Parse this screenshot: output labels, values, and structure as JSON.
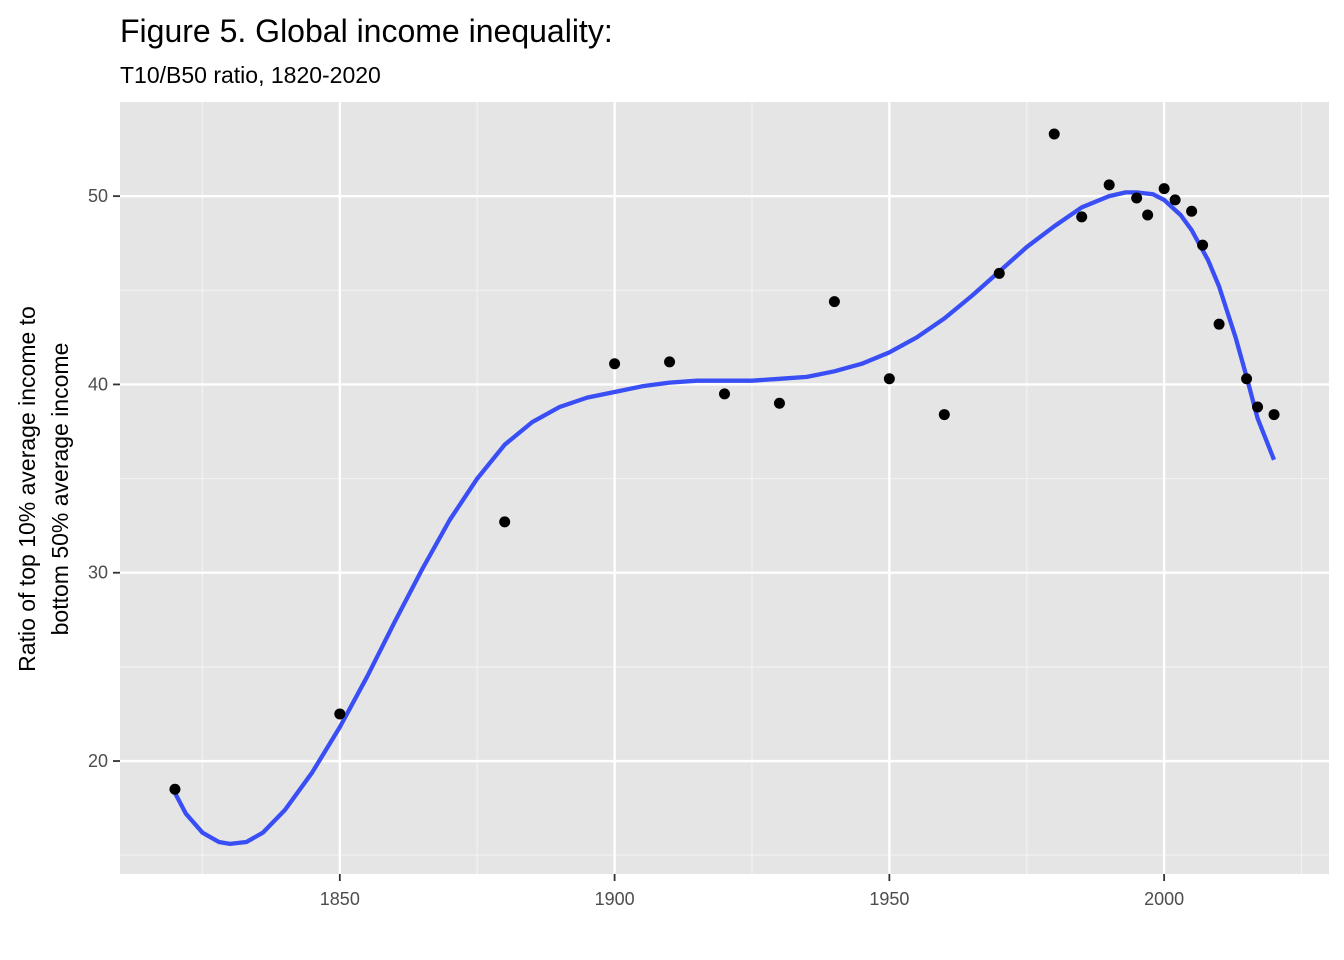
{
  "chart_data": {
    "type": "scatter",
    "title": "Figure 5. Global income inequality:",
    "subtitle": "T10/B50 ratio, 1820-2020",
    "xlabel": "",
    "ylabel_lines": [
      "Ratio of top 10% average income to",
      "bottom 50% average income"
    ],
    "xlim": [
      1810,
      2030
    ],
    "ylim": [
      14,
      55
    ],
    "x_ticks": [
      1850,
      1900,
      1950,
      2000
    ],
    "x_minor_ticks": [
      1825,
      1875,
      1925,
      1975,
      2025
    ],
    "y_ticks": [
      20,
      30,
      40,
      50
    ],
    "y_minor_ticks": [
      15,
      25,
      35,
      45
    ],
    "grid": true,
    "points": {
      "name": "T10/B50 ratio",
      "color": "#000000",
      "x": [
        1820,
        1850,
        1880,
        1900,
        1910,
        1920,
        1930,
        1940,
        1950,
        1960,
        1970,
        1980,
        1985,
        1990,
        1995,
        1997,
        2000,
        2002,
        2005,
        2007,
        2010,
        2015,
        2017,
        2020
      ],
      "y": [
        18.5,
        22.5,
        32.7,
        41.1,
        41.2,
        39.5,
        39.0,
        44.4,
        40.3,
        38.4,
        45.9,
        53.3,
        48.9,
        50.6,
        49.9,
        49.0,
        50.4,
        49.8,
        49.2,
        47.4,
        43.2,
        40.3,
        38.8,
        38.4
      ]
    },
    "smooth": {
      "name": "fitted trend",
      "color": "#3a4ef5",
      "x": [
        1820,
        1822,
        1825,
        1828,
        1830,
        1833,
        1836,
        1840,
        1845,
        1850,
        1855,
        1860,
        1865,
        1870,
        1875,
        1880,
        1885,
        1890,
        1895,
        1900,
        1905,
        1910,
        1915,
        1920,
        1925,
        1930,
        1935,
        1940,
        1945,
        1950,
        1955,
        1960,
        1965,
        1970,
        1975,
        1980,
        1985,
        1990,
        1993,
        1995,
        1998,
        2000,
        2003,
        2005,
        2008,
        2010,
        2013,
        2015,
        2017,
        2020
      ],
      "y": [
        18.3,
        17.2,
        16.2,
        15.7,
        15.6,
        15.7,
        16.2,
        17.4,
        19.4,
        21.8,
        24.5,
        27.4,
        30.2,
        32.8,
        35.0,
        36.8,
        38.0,
        38.8,
        39.3,
        39.6,
        39.9,
        40.1,
        40.2,
        40.2,
        40.2,
        40.3,
        40.4,
        40.7,
        41.1,
        41.7,
        42.5,
        43.5,
        44.7,
        46.0,
        47.3,
        48.4,
        49.4,
        50.0,
        50.2,
        50.2,
        50.1,
        49.8,
        49.0,
        48.2,
        46.6,
        45.2,
        42.5,
        40.4,
        38.2,
        36.0
      ]
    }
  }
}
